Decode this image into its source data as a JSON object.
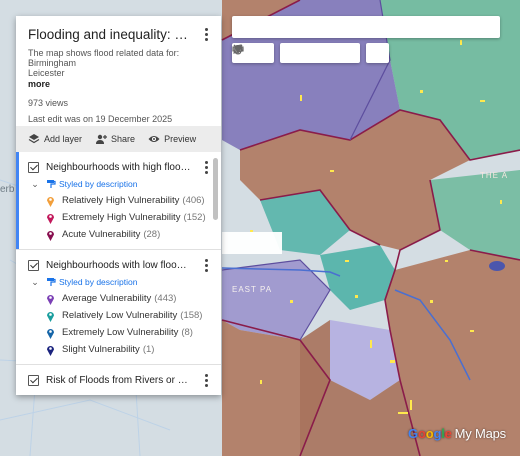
{
  "map": {
    "colors": {
      "brown": "#b07a62",
      "purple": "#7f75b8",
      "teal": "#4fb1a6",
      "green": "#6bb89a",
      "base": "#d4dde3"
    },
    "labels": {
      "place1": "THE A",
      "place2": "EAST PA",
      "edge": "erb"
    },
    "toolbar": [
      "undo-icon",
      "redo-icon",
      "hand-icon",
      "marker-icon",
      "shape-icon",
      "route-icon",
      "ruler-icon"
    ],
    "attribution": {
      "google": [
        "G",
        "o",
        "o",
        "g",
        "l",
        "e"
      ],
      "product": "My Maps"
    }
  },
  "panel": {
    "title": "Flooding and inequality: English c...",
    "description_lines": [
      "The map shows flood related data for:",
      "Birmingham",
      "Leicester"
    ],
    "more": "more",
    "views": "973 views",
    "last_edit": "Last edit was on 19 December 2025",
    "actions": {
      "add_layer": "Add layer",
      "share": "Share",
      "preview": "Preview"
    }
  },
  "layers": [
    {
      "name": "Neighbourhoods with high flood v...",
      "style": "Styled by description",
      "items": [
        {
          "label": "Relatively High Vulnerability",
          "count": "(406)",
          "color": "#f29f3b"
        },
        {
          "label": "Extremely High Vulnerability",
          "count": "(152)",
          "color": "#c2185b"
        },
        {
          "label": "Acute Vulnerability",
          "count": "(28)",
          "color": "#880e4f"
        }
      ]
    },
    {
      "name": "Neighbourhoods with low flood v...",
      "style": "Styled by description",
      "items": [
        {
          "label": "Average Vulnerability",
          "count": "(443)",
          "color": "#7b3fb5"
        },
        {
          "label": "Relatively Low Vulnerability",
          "count": "(158)",
          "color": "#1a9e9e"
        },
        {
          "label": "Extremely Low Vulnerability",
          "count": "(8)",
          "color": "#1565a8"
        },
        {
          "label": "Slight Vulnerability",
          "count": "(1)",
          "color": "#1a237e"
        }
      ]
    },
    {
      "name": "Risk of Floods from Rivers or Seas"
    }
  ]
}
